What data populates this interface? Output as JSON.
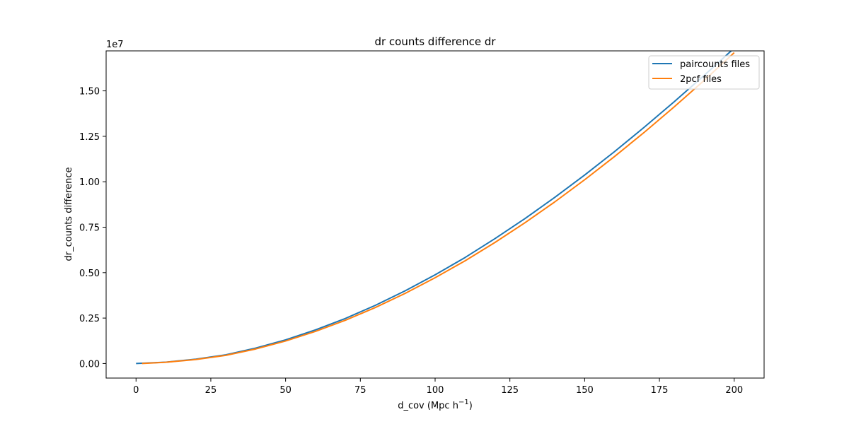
{
  "chart_data": {
    "type": "line",
    "title": "dr counts difference dr",
    "xlabel": "d_cov (Mpc h",
    "xlabel_sup": "−1",
    "xlabel_close": ")",
    "ylabel": "dr_counts difference",
    "y_offset_label": "1e7",
    "xlim": [
      -10,
      210
    ],
    "ylim": [
      -0.08,
      1.72
    ],
    "y_scale_note": "y values in units of 1e7",
    "x_ticks": [
      0,
      25,
      50,
      75,
      100,
      125,
      150,
      175,
      200
    ],
    "x_tick_labels": [
      "0",
      "25",
      "50",
      "75",
      "100",
      "125",
      "150",
      "175",
      "200"
    ],
    "y_ticks": [
      0.0,
      0.25,
      0.5,
      0.75,
      1.0,
      1.25,
      1.5
    ],
    "y_tick_labels": [
      "0.00",
      "0.25",
      "0.50",
      "0.75",
      "1.00",
      "1.25",
      "1.50"
    ],
    "grid": false,
    "legend_position": "top-right",
    "series": [
      {
        "name": "paircounts files",
        "color": "#1f77b4",
        "x": [
          0,
          10,
          20,
          30,
          40,
          50,
          60,
          70,
          80,
          90,
          100,
          110,
          120,
          130,
          140,
          150,
          160,
          170,
          180,
          190,
          200
        ],
        "y": [
          0.0,
          0.0076,
          0.024,
          0.048,
          0.085,
          0.13,
          0.185,
          0.248,
          0.32,
          0.4,
          0.488,
          0.583,
          0.687,
          0.797,
          0.914,
          1.037,
          1.166,
          1.301,
          1.441,
          1.586,
          1.735
        ]
      },
      {
        "name": "2pcf files",
        "color": "#ff7f0e",
        "x": [
          2,
          10,
          20,
          30,
          40,
          50,
          60,
          70,
          80,
          90,
          100,
          110,
          120,
          130,
          140,
          150,
          160,
          170,
          180,
          190,
          200
        ],
        "y": [
          0.0,
          0.0068,
          0.022,
          0.045,
          0.08,
          0.124,
          0.177,
          0.238,
          0.308,
          0.386,
          0.472,
          0.565,
          0.666,
          0.774,
          0.889,
          1.011,
          1.139,
          1.273,
          1.413,
          1.558,
          1.71
        ]
      }
    ]
  }
}
